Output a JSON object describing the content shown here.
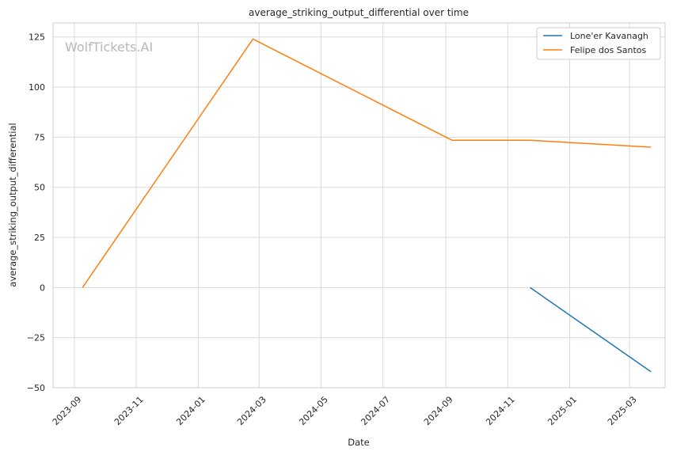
{
  "chart_data": {
    "type": "line",
    "title": "average_striking_output_differential over time",
    "xlabel": "Date",
    "ylabel": "average_striking_output_differential",
    "watermark": "WolfTickets.AI",
    "x_ticks": [
      "2023-09",
      "2023-11",
      "2024-01",
      "2024-03",
      "2024-05",
      "2024-07",
      "2024-09",
      "2024-11",
      "2025-01",
      "2025-03"
    ],
    "xlim": [
      "2023-08-11",
      "2025-04-05"
    ],
    "y_ticks": [
      -50,
      -25,
      0,
      25,
      50,
      75,
      100,
      125
    ],
    "ylim": [
      -50,
      132
    ],
    "grid": true,
    "legend_position": "top-right",
    "series": [
      {
        "name": "Lone'er Kavanagh",
        "color": "#1f77b4",
        "points": [
          {
            "x": "2024-11-23",
            "y": 0
          },
          {
            "x": "2025-03-22",
            "y": -42
          }
        ]
      },
      {
        "name": "Felipe dos Santos",
        "color": "#ff7f0e",
        "points": [
          {
            "x": "2023-09-09",
            "y": 0
          },
          {
            "x": "2024-02-24",
            "y": 124
          },
          {
            "x": "2024-09-07",
            "y": 73.5
          },
          {
            "x": "2024-11-23",
            "y": 73.5
          },
          {
            "x": "2025-03-22",
            "y": 70
          }
        ]
      }
    ]
  }
}
